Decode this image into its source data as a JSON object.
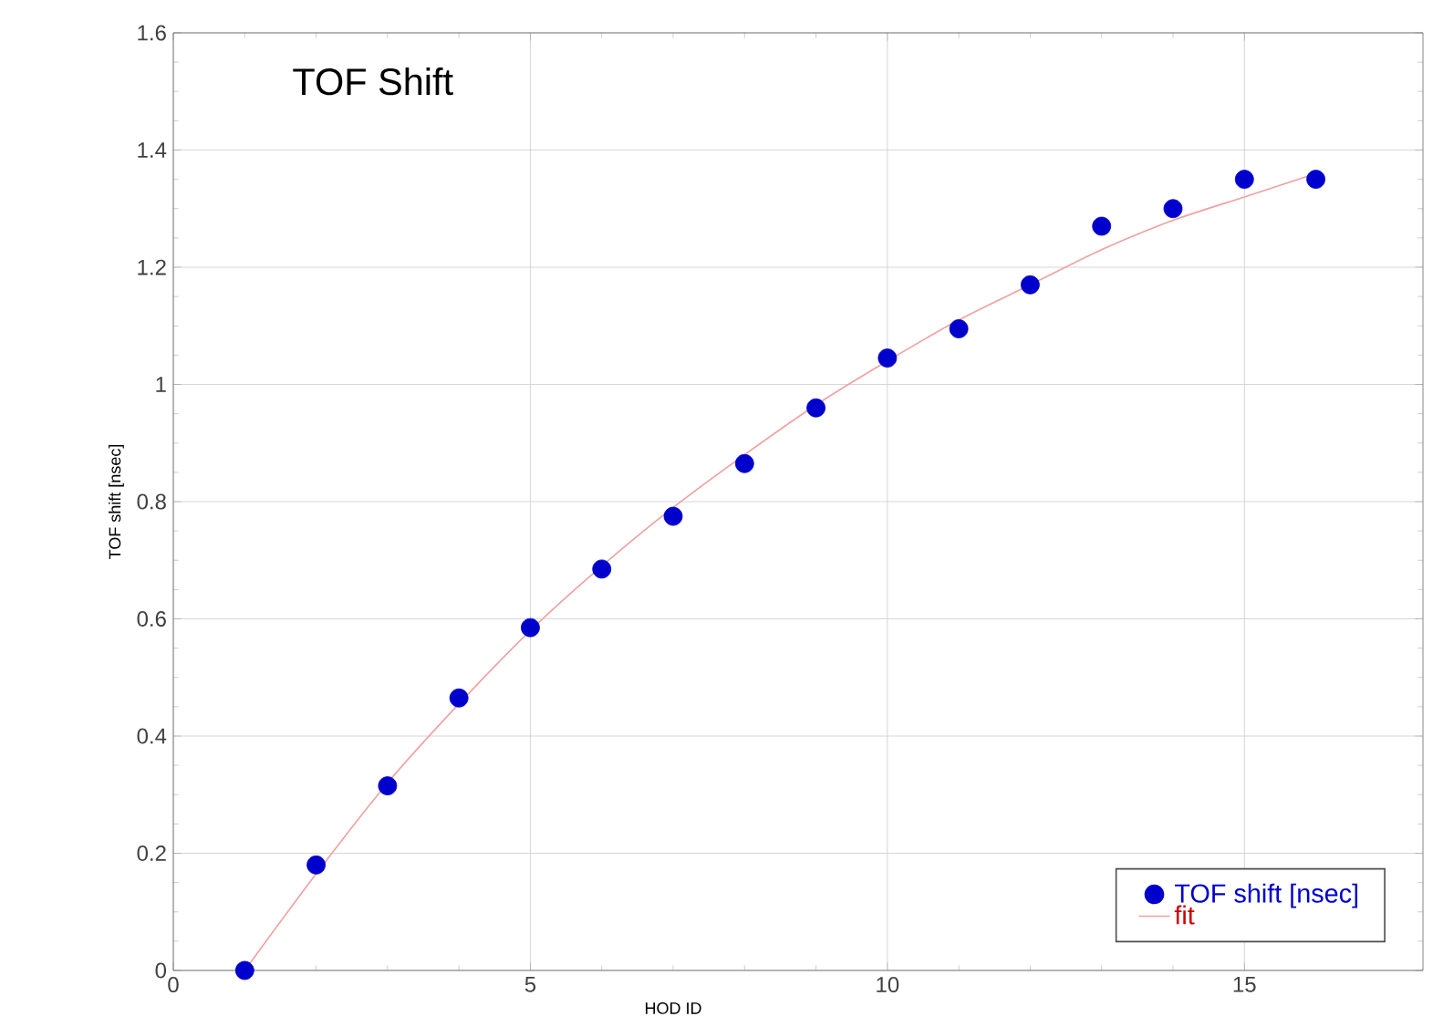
{
  "chart_data": {
    "type": "scatter",
    "title": "TOF Shift",
    "xlabel": "HOD ID",
    "ylabel": "TOF shift [nsec]",
    "x": [
      1,
      2,
      3,
      4,
      5,
      6,
      7,
      8,
      9,
      10,
      11,
      12,
      13,
      14,
      15,
      16
    ],
    "series": [
      {
        "name": "TOF shift [nsec]",
        "color": "#0000cc",
        "marker": "circle",
        "values": [
          0,
          0.18,
          0.315,
          0.465,
          0.585,
          0.685,
          0.775,
          0.865,
          0.96,
          1.045,
          1.095,
          1.17,
          1.27,
          1.3,
          1.35,
          1.35
        ]
      },
      {
        "name": "fit",
        "type": "line",
        "color": "#f0a0a0",
        "marker": "none",
        "line_style": "solid",
        "values": [
          0,
          0.165,
          0.32,
          0.455,
          0.58,
          0.69,
          0.79,
          0.88,
          0.965,
          1.04,
          1.11,
          1.17,
          1.23,
          1.28,
          1.32,
          1.36
        ]
      }
    ],
    "xlim": [
      0,
      17.5
    ],
    "ylim": [
      0,
      1.6
    ],
    "xticks": [
      0,
      5,
      10,
      15
    ],
    "yticks": [
      0,
      0.2,
      0.4,
      0.6,
      0.8,
      1,
      1.2,
      1.4,
      1.6
    ],
    "grid": true,
    "legend": "bottom right"
  }
}
